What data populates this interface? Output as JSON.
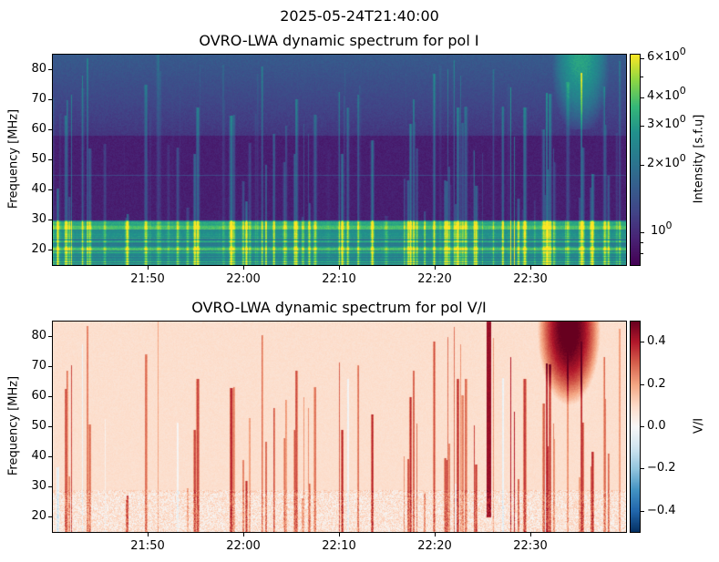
{
  "suptitle": "2025-05-24T21:40:00",
  "chart_data": [
    {
      "type": "heatmap",
      "title": "OVRO-LWA dynamic spectrum for pol I",
      "xlabel": "",
      "ylabel": "Frequency [MHz]",
      "xlim": [
        "21:40",
        "22:40"
      ],
      "ylim": [
        15,
        85
      ],
      "xticks": [
        "21:50",
        "22:00",
        "22:10",
        "22:20",
        "22:30"
      ],
      "yticks": [
        "20",
        "30",
        "40",
        "50",
        "60",
        "70",
        "80"
      ],
      "colorbar": {
        "label": "Intensity [s.f.u]",
        "scale": "log",
        "range": [
          0.71,
          6.3
        ],
        "cmap": "viridis",
        "ticks": [
          {
            "v": 6,
            "m": "6",
            "e": "0"
          },
          {
            "v": 4,
            "m": "4",
            "e": "0"
          },
          {
            "v": 3,
            "m": "3",
            "e": "0"
          },
          {
            "v": 2,
            "m": "2",
            "e": "0"
          },
          {
            "v": 1,
            "m": "",
            "e": "0"
          }
        ]
      }
    },
    {
      "type": "heatmap",
      "title": "OVRO-LWA dynamic spectrum for pol V/I",
      "xlabel": "",
      "ylabel": "Frequency [MHz]",
      "xlim": [
        "21:40",
        "22:40"
      ],
      "ylim": [
        15,
        85
      ],
      "xticks": [
        "21:50",
        "22:00",
        "22:10",
        "22:20",
        "22:30"
      ],
      "yticks": [
        "20",
        "30",
        "40",
        "50",
        "60",
        "70",
        "80"
      ],
      "colorbar": {
        "label": "V/I",
        "scale": "linear",
        "range": [
          -0.5,
          0.5
        ],
        "cmap": "RdBu_r",
        "ticks": [
          "0.4",
          "0.2",
          "0.0",
          "−0.2",
          "−0.4"
        ],
        "tickvals": [
          0.4,
          0.2,
          0,
          -0.2,
          -0.4
        ]
      }
    }
  ]
}
